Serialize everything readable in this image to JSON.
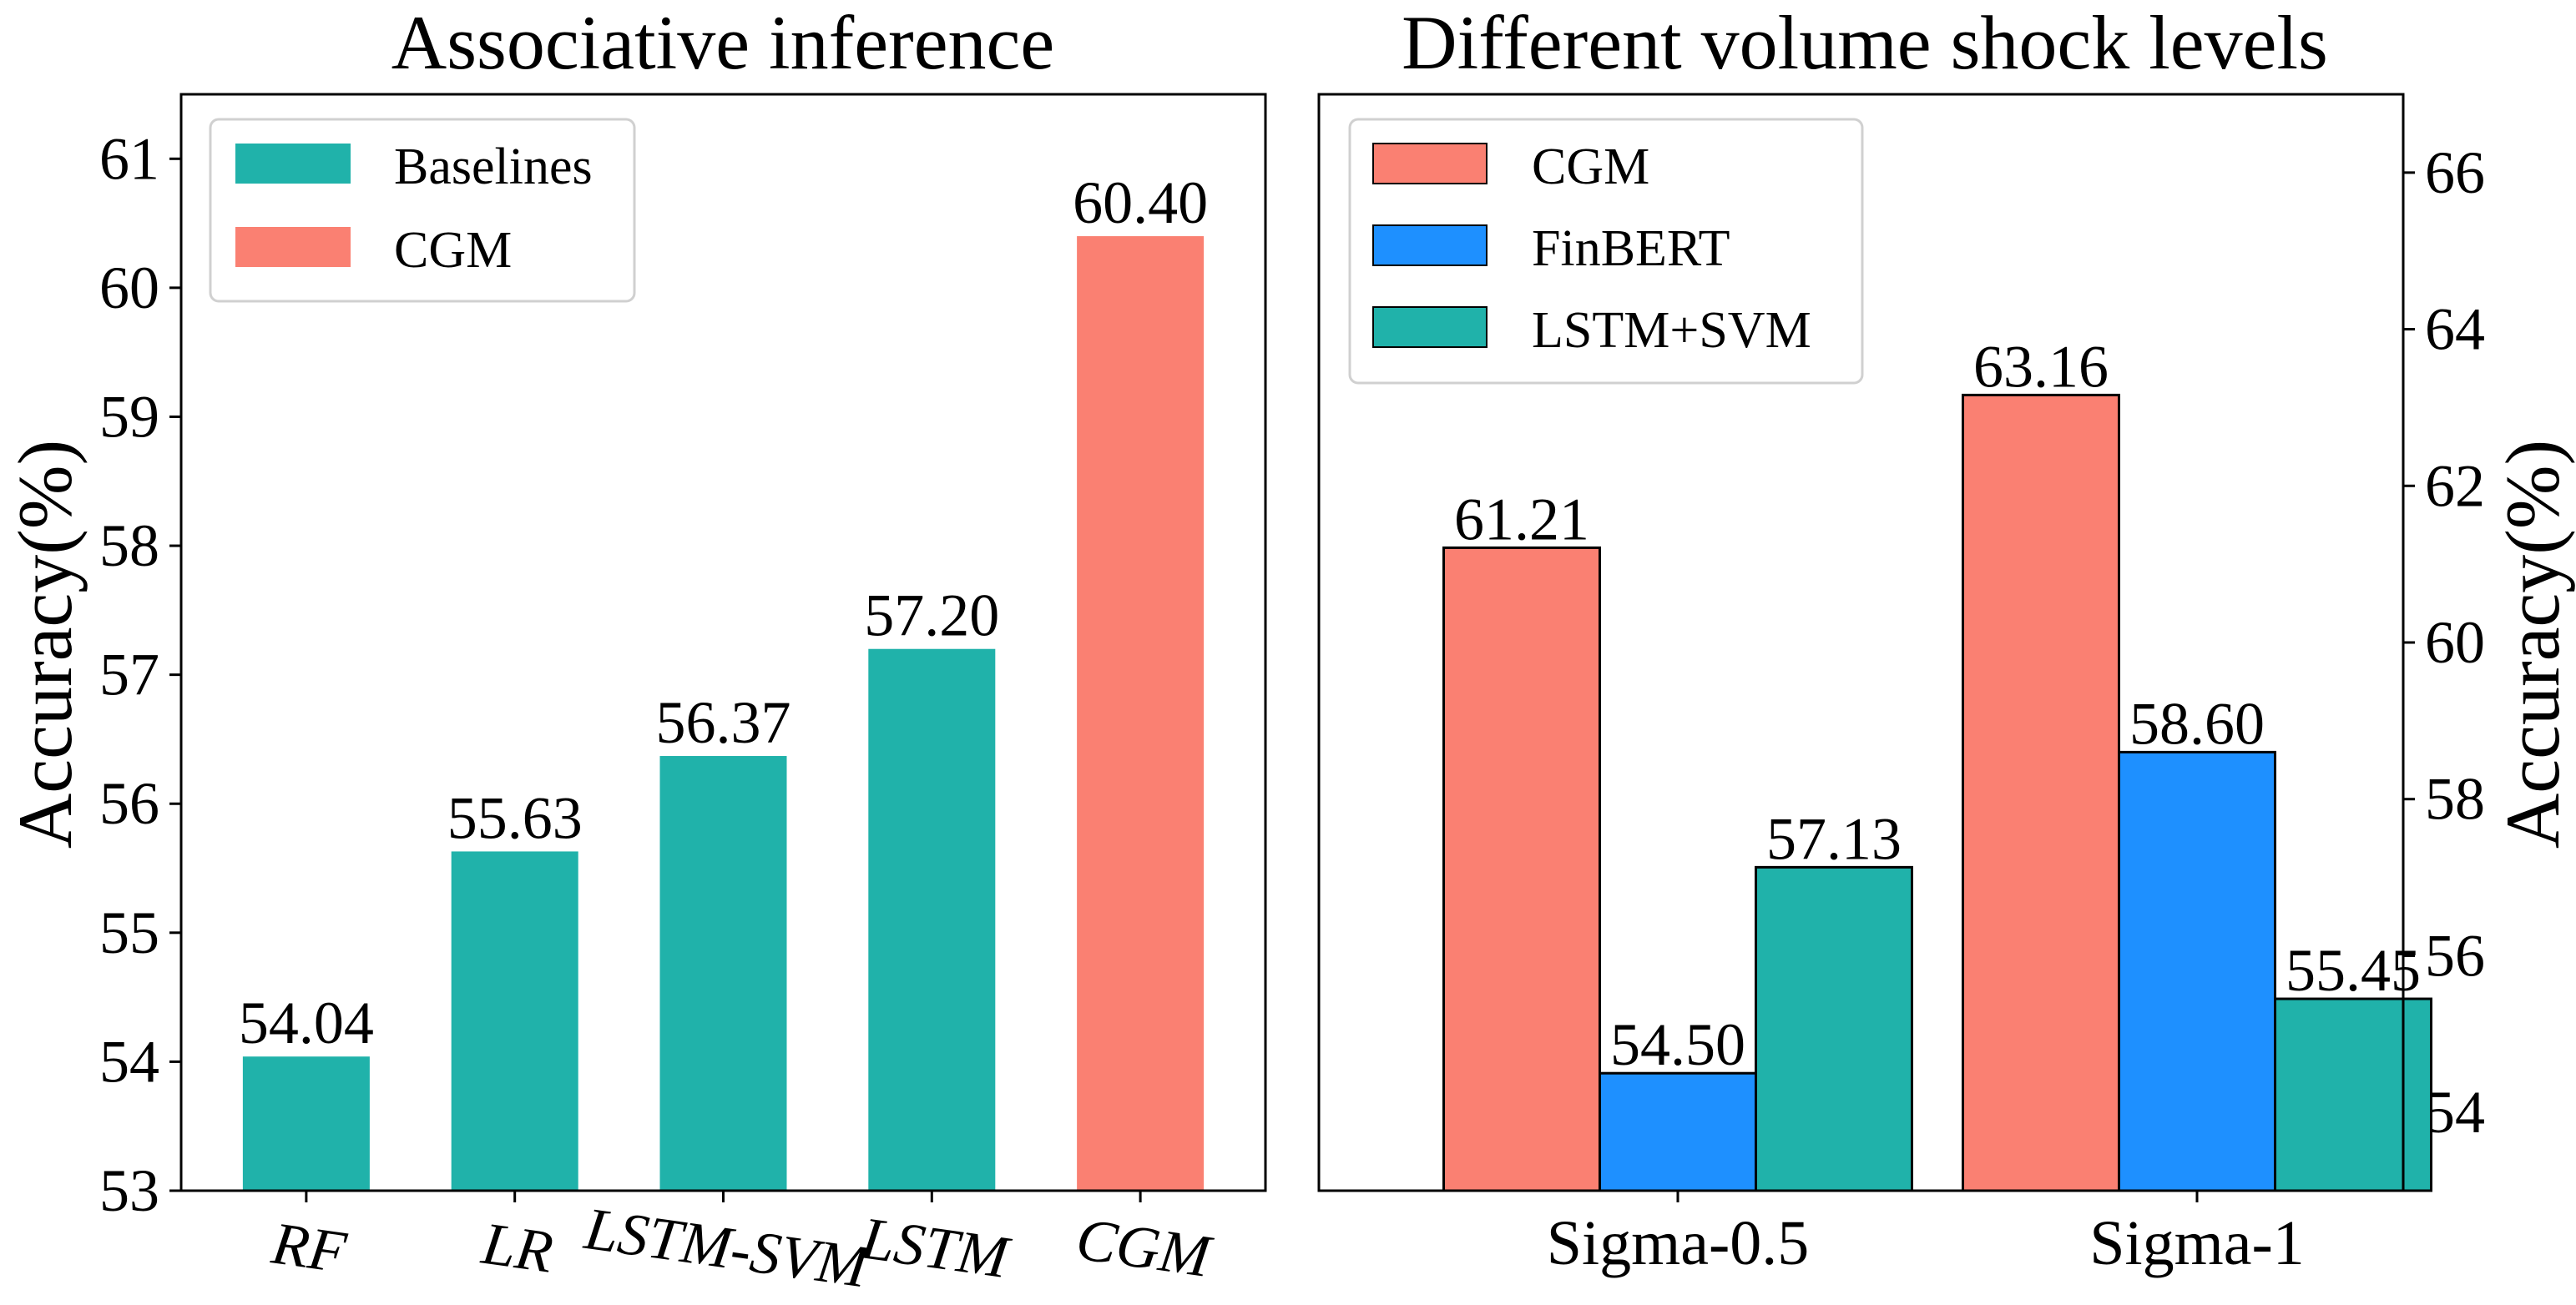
{
  "chart_data": [
    {
      "type": "bar",
      "title": "Associative inference",
      "xlabel": "",
      "ylabel": "Accuracy(%)",
      "ylim": [
        53,
        61.5
      ],
      "yticks": [
        53,
        54,
        55,
        56,
        57,
        58,
        59,
        60,
        61
      ],
      "categories": [
        "RF",
        "LR",
        "LSTM-SVM",
        "LSTM",
        "CGM"
      ],
      "values": [
        54.04,
        55.63,
        56.37,
        57.2,
        60.4
      ],
      "value_labels": [
        "54.04",
        "55.63",
        "56.37",
        "57.20",
        "60.40"
      ],
      "bar_groups": [
        "Baselines",
        "Baselines",
        "Baselines",
        "Baselines",
        "CGM"
      ],
      "legend": [
        {
          "label": "Baselines",
          "color": "#20b2aa"
        },
        {
          "label": "CGM",
          "color": "#fa8072"
        }
      ],
      "legend_position": "top-left",
      "tick_label_style": "italic, rotated",
      "grid": false
    },
    {
      "type": "bar",
      "title": "Different volume shock levels",
      "xlabel": "",
      "ylabel": "Accuracy(%)",
      "yaxis_side": "right",
      "ylim": [
        53,
        67
      ],
      "yticks": [
        54,
        56,
        58,
        60,
        62,
        64,
        66
      ],
      "categories": [
        "Sigma-0.5",
        "Sigma-1"
      ],
      "series": [
        {
          "name": "CGM",
          "color": "#fa8072",
          "values": [
            61.21,
            63.16
          ],
          "value_labels": [
            "61.21",
            "63.16"
          ]
        },
        {
          "name": "FinBERT",
          "color": "#1e90ff",
          "values": [
            54.5,
            58.6
          ],
          "value_labels": [
            "54.50",
            "58.60"
          ]
        },
        {
          "name": "LSTM+SVM",
          "color": "#20b2aa",
          "values": [
            57.13,
            55.45
          ],
          "value_labels": [
            "57.13",
            "55.45"
          ]
        }
      ],
      "legend_position": "top-left",
      "grid": false
    }
  ]
}
